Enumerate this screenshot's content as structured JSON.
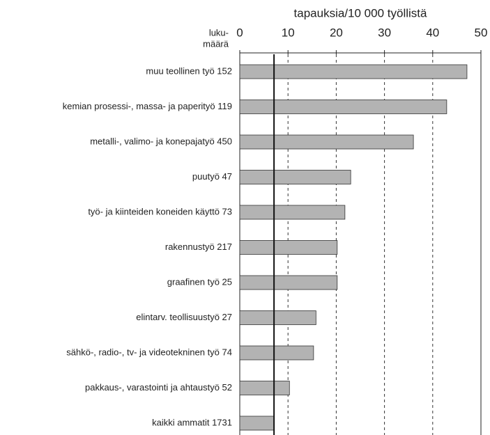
{
  "chart_data": {
    "type": "bar",
    "orientation": "horizontal",
    "xlabel": "tapauksia/10 000 työllistä",
    "category_header": [
      "luku-",
      "määrä"
    ],
    "categories": [
      "muu teollinen työ 152",
      "kemian prosessi-, massa- ja paperityö 119",
      "metalli-, valimo- ja konepajatyö 450",
      "puutyö 47",
      "työ- ja kiinteiden koneiden käyttö 73",
      "rakennustyö 217",
      "graafinen työ 25",
      "elintarv. teollisuustyö 27",
      "sähkö-, radio-, tv- ja videotekninen työ 74",
      "pakkaus-, varastointi ja ahtaustyö 52",
      "kaikki ammatit 1731"
    ],
    "values": [
      47.1,
      42.9,
      36.0,
      23.0,
      21.8,
      20.2,
      20.2,
      15.8,
      15.3,
      10.3,
      7.1
    ],
    "color": "#b3b3b3",
    "xlim": [
      0,
      50
    ],
    "xticks": [
      0,
      10,
      20,
      30,
      40,
      50
    ],
    "grid": true,
    "reference_line": 7.1
  }
}
